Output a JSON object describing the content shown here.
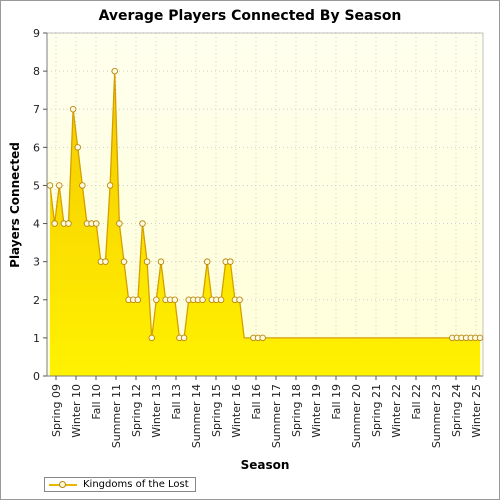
{
  "chart_data": {
    "type": "area",
    "title": "Average Players Connected By Season",
    "xlabel": "Season",
    "ylabel": "Players Connected",
    "ylim": [
      0,
      9
    ],
    "yticks": [
      0,
      1,
      2,
      3,
      4,
      5,
      6,
      7,
      8,
      9
    ],
    "xtick_labels": [
      "Spring 09",
      "Winter 10",
      "Fall 10",
      "Summer 11",
      "Spring 12",
      "Winter 13",
      "Fall 13",
      "Summer 14",
      "Spring 15",
      "Winter 16",
      "Fall 16",
      "Summer 17",
      "Spring 18",
      "Winter 19",
      "Fall 19",
      "Summer 20",
      "Spring 21",
      "Winter 22",
      "Fall 22",
      "Summer 23",
      "Spring 24",
      "Winter 25"
    ],
    "grid": true,
    "legend_position": "bottom-left",
    "colors": {
      "fill": "#ffe600",
      "line": "#d4a000",
      "marker_fill": "#fffbe0",
      "background": "#fffff0"
    },
    "series": [
      {
        "name": "Kingdoms of the Lost",
        "values": [
          5,
          4,
          5,
          4,
          4,
          7,
          6,
          5,
          4,
          4,
          4,
          3,
          3,
          5,
          8,
          4,
          3,
          2,
          2,
          2,
          4,
          3,
          1,
          2,
          3,
          2,
          2,
          2,
          1,
          1,
          2,
          2,
          2,
          2,
          3,
          2,
          2,
          2,
          3,
          3,
          2,
          2,
          null,
          null,
          1,
          1,
          1,
          null,
          null,
          null,
          null,
          null,
          null,
          null,
          null,
          null,
          null,
          null,
          null,
          null,
          null,
          null,
          null,
          null,
          null,
          null,
          null,
          null,
          null,
          null,
          null,
          null,
          null,
          null,
          null,
          null,
          null,
          null,
          null,
          null,
          null,
          null,
          null,
          null,
          null,
          null,
          null,
          1,
          1,
          1,
          1,
          1,
          1,
          1
        ],
        "gap_fill_value": 1
      }
    ]
  }
}
